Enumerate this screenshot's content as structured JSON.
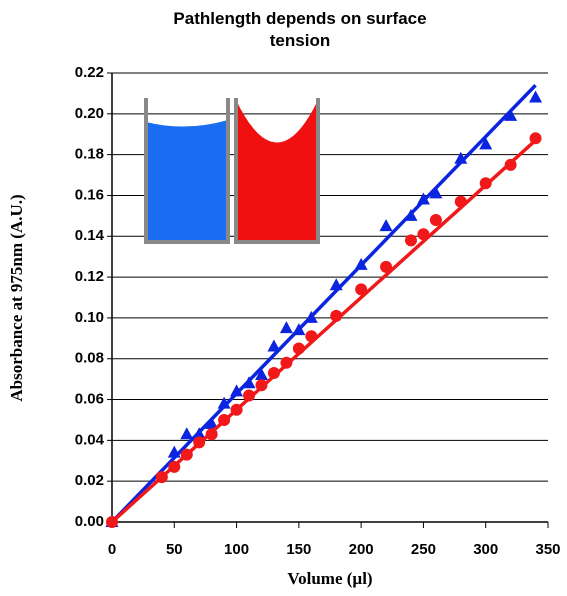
{
  "chart_data": {
    "type": "scatter",
    "title": "Pathlength depends on surface tension",
    "x_label": "Volume (µl)",
    "y_label": "Absorbance at 975nm (A.U.)",
    "xlim": [
      0,
      350
    ],
    "xticks": [
      0,
      50,
      100,
      150,
      200,
      250,
      300,
      350
    ],
    "ylim": [
      0,
      0.22
    ],
    "yticks": [
      {
        "value": 0,
        "label": "0.00"
      },
      {
        "value": 0.02,
        "label": "0.02"
      },
      {
        "value": 0.04,
        "label": "0.04"
      },
      {
        "value": 0.06,
        "label": "0.06"
      },
      {
        "value": 0.08,
        "label": "0.08"
      },
      {
        "value": 0.1,
        "label": "0.10"
      },
      {
        "value": 0.12,
        "label": "0.12"
      },
      {
        "value": 0.14,
        "label": "0.14"
      },
      {
        "value": 0.16,
        "label": "0.16"
      },
      {
        "value": 0.18,
        "label": "0.18"
      },
      {
        "value": 0.2,
        "label": "0.20"
      },
      {
        "value": 0.22,
        "label": "0.22"
      }
    ],
    "grid": true,
    "series": [
      {
        "color": "#0b24e0",
        "marker": "triangle",
        "x": [
          0,
          50,
          60,
          70,
          80,
          90,
          100,
          110,
          120,
          130,
          140,
          150,
          160,
          180,
          200,
          220,
          240,
          250,
          260,
          280,
          300,
          320,
          340
        ],
        "values": [
          0,
          0.034,
          0.043,
          0.043,
          0.048,
          0.058,
          0.064,
          0.068,
          0.072,
          0.086,
          0.095,
          0.094,
          0.1,
          0.116,
          0.126,
          0.145,
          0.15,
          0.158,
          0.161,
          0.178,
          0.185,
          0.199,
          0.208
        ],
        "trendline": {
          "x": [
            0,
            340
          ],
          "values": [
            0,
            0.214
          ]
        }
      },
      {
        "color": "#f01818",
        "marker": "circle",
        "x": [
          0,
          40,
          50,
          60,
          70,
          80,
          90,
          100,
          110,
          120,
          130,
          140,
          150,
          160,
          180,
          200,
          220,
          240,
          250,
          260,
          280,
          300,
          320,
          340
        ],
        "values": [
          0,
          0.022,
          0.027,
          0.033,
          0.039,
          0.043,
          0.05,
          0.055,
          0.062,
          0.067,
          0.073,
          0.078,
          0.085,
          0.091,
          0.101,
          0.114,
          0.125,
          0.138,
          0.141,
          0.148,
          0.157,
          0.166,
          0.175,
          0.188
        ],
        "trendline": {
          "x": [
            0,
            340
          ],
          "values": [
            0,
            0.187
          ]
        }
      }
    ]
  }
}
